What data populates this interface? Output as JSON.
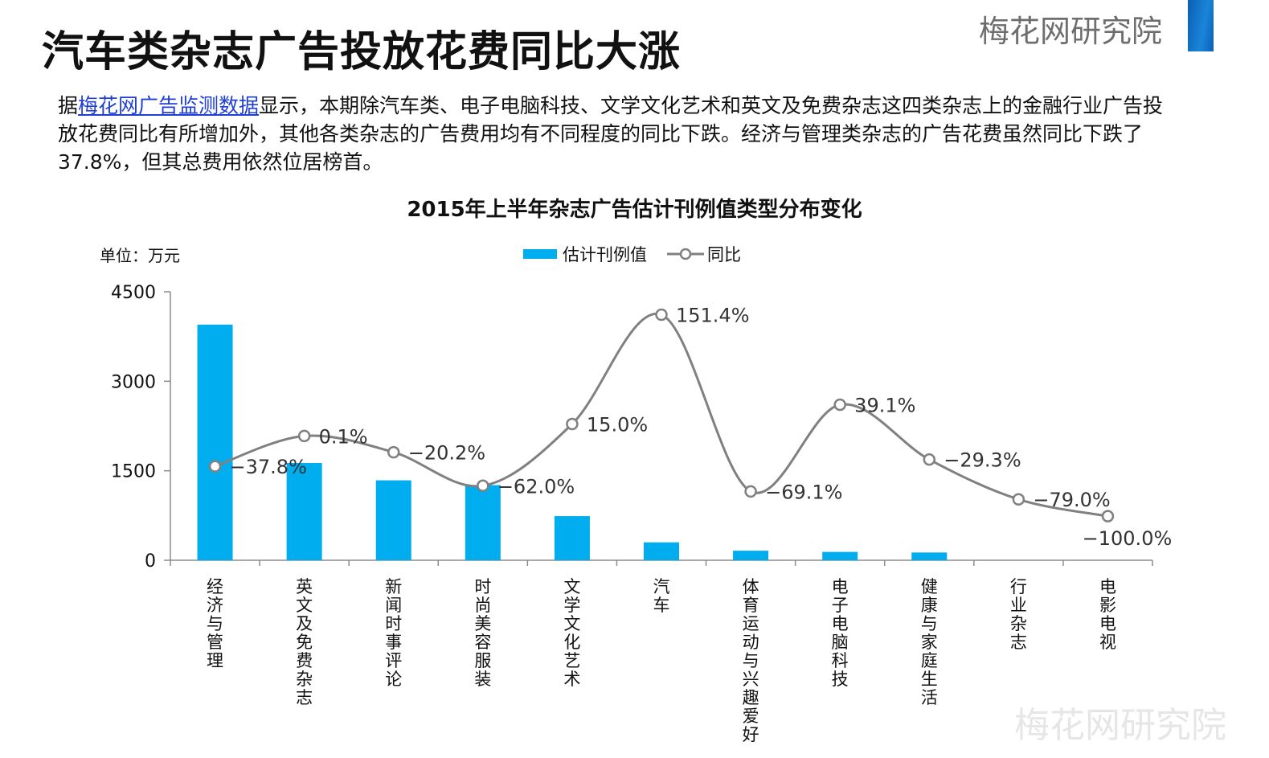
{
  "header": {
    "title": "汽车类杂志广告投放花费同比大涨",
    "brand": "梅花网研究院"
  },
  "intro": {
    "prefix": "据",
    "link": "梅花网广告监测数据",
    "body": "显示，本期除汽车类、电子电脑科技、文学文化艺术和英文及免费杂志这四类杂志上的金融行业广告投放花费同比有所增加外，其他各类杂志的广告费用均有不同程度的同比下跌。经济与管理类杂志的广告花费虽然同比下跌了37.8%，但其总费用依然位居榜首。"
  },
  "watermark": "梅花网研究院",
  "colors": {
    "bar": "#00aeef",
    "line": "#808080",
    "axis": "#8c8c8c",
    "text": "#111111"
  },
  "chart_data": {
    "type": "bar",
    "title": "2015年上半年杂志广告估计刊例值类型分布变化",
    "unit_label": "单位：万元",
    "legend_position": "top-center",
    "categories": [
      "经济与管理",
      "英文及免费杂志",
      "新闻时事评论",
      "时尚美容服装",
      "文学文化艺术",
      "汽车",
      "体育运动与兴趣爱好",
      "电子电脑科技",
      "健康与家庭生活",
      "行业杂志",
      "电影电视"
    ],
    "y_ticks": [
      "0",
      "1500",
      "3000",
      "4500"
    ],
    "ylim": [
      0,
      4500
    ],
    "grid": false,
    "series": [
      {
        "name": "估计刊例值",
        "type": "bar",
        "values": [
          3950,
          1630,
          1340,
          1260,
          740,
          300,
          160,
          140,
          130,
          0,
          0
        ]
      },
      {
        "name": "同比",
        "type": "line",
        "values": [
          -37.8,
          0.1,
          -20.2,
          -62.0,
          15.0,
          151.4,
          -69.1,
          39.1,
          -29.3,
          -79.0,
          -100.0
        ],
        "labels": [
          "−37.8%",
          "0.1%",
          "−20.2%",
          "−62.0%",
          "15.0%",
          "151.4%",
          "−69.1%",
          "39.1%",
          "−29.3%",
          "−79.0%",
          "−100.0%"
        ]
      }
    ]
  }
}
